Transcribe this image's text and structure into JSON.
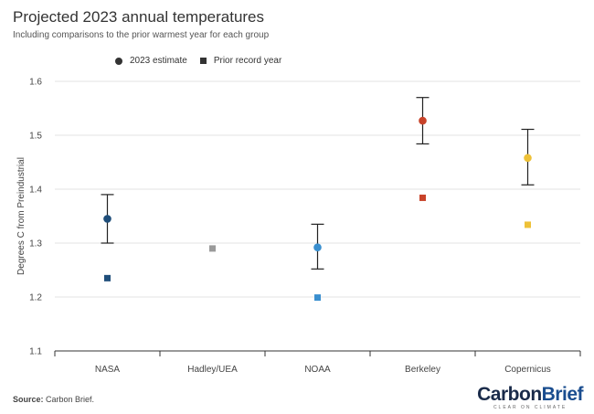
{
  "title": "Projected 2023 annual temperatures",
  "subtitle": "Including comparisons to the prior warmest year for each group",
  "legend": {
    "estimate_label": "2023 estimate",
    "record_label": "Prior record year"
  },
  "footer": {
    "source_label": "Source:",
    "source_text": "Carbon Brief."
  },
  "logo": {
    "brand_part1": "Carbon",
    "brand_part2": "Brief",
    "tagline": "CLEAR ON CLIMATE"
  },
  "chart_data": {
    "type": "scatter",
    "title": "Projected 2023 annual temperatures",
    "subtitle": "Including comparisons to the prior warmest year for each group",
    "xlabel": "",
    "ylabel": "Degrees C from Preindustrial",
    "ylim": [
      1.1,
      1.6
    ],
    "yticks": [
      1.1,
      1.2,
      1.3,
      1.4,
      1.5,
      1.6
    ],
    "ytick_labels": [
      "1.1",
      "1.2",
      "1.3",
      "1.4",
      "1.5",
      "1.6"
    ],
    "grid": true,
    "legend_position": "top-left",
    "categories": [
      "NASA",
      "Hadley/UEA",
      "NOAA",
      "Berkeley",
      "Copernicus"
    ],
    "colors": [
      "#1f4e7a",
      "#9a9a9a",
      "#3a8fcf",
      "#c8432a",
      "#eec137"
    ],
    "series": [
      {
        "name": "2023 estimate",
        "marker": "circle",
        "values": [
          1.345,
          null,
          1.292,
          1.527,
          1.458
        ],
        "error_low": [
          1.3,
          null,
          1.252,
          1.484,
          1.408
        ],
        "error_high": [
          1.39,
          null,
          1.335,
          1.57,
          1.511
        ]
      },
      {
        "name": "Prior record year",
        "marker": "square",
        "values": [
          1.235,
          1.29,
          1.199,
          1.384,
          1.334
        ]
      }
    ]
  }
}
